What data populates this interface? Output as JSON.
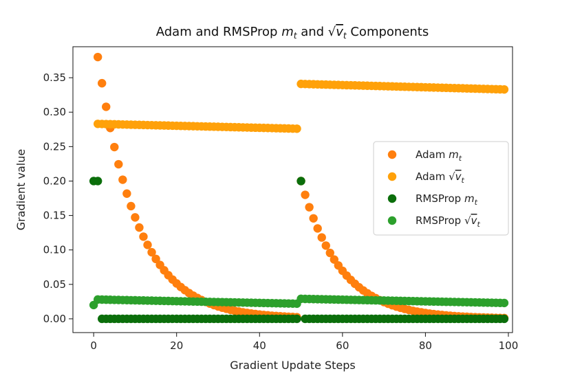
{
  "chart_data": {
    "type": "scatter",
    "title": "Adam and RMSProp m_t and √v_t Components",
    "title_parts": {
      "prefix": "Adam and RMSProp ",
      "m": "m",
      "sub_t": "t",
      "mid": " and ",
      "sqrt": "√",
      "v": "v",
      "sub_t2": "t",
      "suffix": " Components"
    },
    "xlabel": "Gradient Update Steps",
    "ylabel": "Gradient value",
    "xlim": [
      -5,
      101
    ],
    "ylim": [
      -0.02,
      0.395
    ],
    "xticks": [
      0,
      20,
      40,
      60,
      80,
      100
    ],
    "yticks": [
      0.0,
      0.05,
      0.1,
      0.15,
      0.2,
      0.25,
      0.3,
      0.35
    ],
    "grid": false,
    "legend_position": "center-right",
    "series": [
      {
        "name": "Adam m_t",
        "legend": {
          "base": "Adam ",
          "var": "m",
          "sub": "t",
          "sqrt": false
        },
        "color": "#ff7f0e",
        "segments": [
          {
            "x_start": 1,
            "x_end": 49,
            "y0": 0.38,
            "decay": 0.9
          },
          {
            "x_start": 50,
            "x_end": 99,
            "y0": 0.2,
            "decay": 0.9
          }
        ]
      },
      {
        "name": "Adam √v_t",
        "legend": {
          "base": "Adam ",
          "var": "v",
          "sub": "t",
          "sqrt": true
        },
        "color": "#ffa10a",
        "segments": [
          {
            "x_start": 1,
            "x_end": 49,
            "y_first": 0.283,
            "y_last": 0.276
          },
          {
            "x_start": 50,
            "x_end": 99,
            "y_first": 0.341,
            "y_last": 0.333
          }
        ]
      },
      {
        "name": "RMSProp m_t",
        "legend": {
          "base": "RMSProp ",
          "var": "m",
          "sub": "t",
          "sqrt": false
        },
        "color": "#0b6e0b",
        "points_extra": [
          [
            0,
            0.2
          ],
          [
            1,
            0.2
          ],
          [
            50,
            0.2
          ]
        ],
        "segments": [
          {
            "x_start": 2,
            "x_end": 49,
            "y_first": 0.0,
            "y_last": 0.0
          },
          {
            "x_start": 51,
            "x_end": 99,
            "y_first": 0.0,
            "y_last": 0.0
          }
        ]
      },
      {
        "name": "RMSProp √v_t",
        "legend": {
          "base": "RMSProp ",
          "var": "v",
          "sub": "t",
          "sqrt": true
        },
        "color": "#2ca02c",
        "points_extra": [
          [
            0,
            0.02
          ]
        ],
        "segments": [
          {
            "x_start": 1,
            "x_end": 49,
            "y_first": 0.028,
            "y_last": 0.022
          },
          {
            "x_start": 50,
            "x_end": 99,
            "y_first": 0.029,
            "y_last": 0.023
          }
        ]
      }
    ]
  }
}
